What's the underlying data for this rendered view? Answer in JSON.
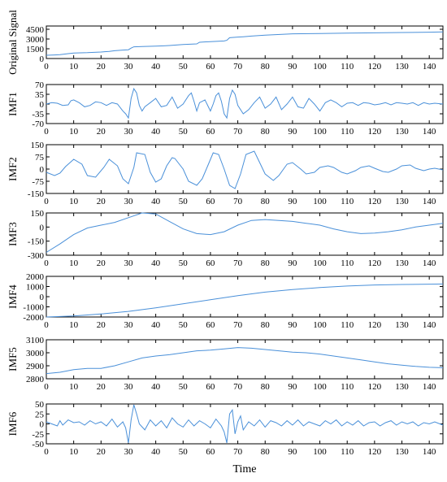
{
  "chart_data": {
    "type": "line",
    "xlabel": "Time",
    "xlim": [
      0,
      145
    ],
    "x_ticks": [
      0,
      10,
      20,
      30,
      40,
      50,
      60,
      70,
      80,
      90,
      100,
      110,
      120,
      130,
      140
    ],
    "line_color": "#4a90d9",
    "grid": false,
    "panels": [
      {
        "ylabel": "Original Signal",
        "ylim": [
          0,
          5000
        ],
        "y_ticks": [
          0,
          1500,
          3000,
          4500
        ],
        "series": [
          {
            "x": [
              0,
              3,
              5,
              8,
              10,
              15,
              20,
              23,
              25,
              28,
              30,
              31,
              32,
              35,
              40,
              43,
              45,
              50,
              55,
              56,
              60,
              65,
              66,
              67,
              70,
              72,
              75,
              80,
              90,
              100,
              110,
              120,
              130,
              140,
              145
            ],
            "y": [
              500,
              550,
              600,
              750,
              850,
              900,
              1000,
              1100,
              1200,
              1300,
              1350,
              1600,
              1800,
              1850,
              1900,
              1950,
              2000,
              2150,
              2250,
              2500,
              2600,
              2700,
              2800,
              3200,
              3300,
              3350,
              3450,
              3600,
              3800,
              3850,
              3900,
              3950,
              4000,
              4050,
              4100
            ]
          }
        ]
      },
      {
        "ylabel": "IMF1",
        "ylim": [
          -70,
          70
        ],
        "y_ticks": [
          -70,
          -35,
          0,
          35,
          70
        ],
        "series": [
          {
            "x": [
              0,
              2,
              4,
              6,
              8,
              9,
              10,
              12,
              14,
              16,
              18,
              20,
              22,
              24,
              26,
              28,
              29,
              30,
              31,
              32,
              33,
              34,
              35,
              36,
              38,
              40,
              42,
              44,
              46,
              48,
              50,
              52,
              53,
              54,
              55,
              56,
              58,
              60,
              61,
              62,
              63,
              64,
              65,
              66,
              67,
              68,
              69,
              70,
              72,
              74,
              76,
              78,
              80,
              82,
              84,
              86,
              88,
              90,
              92,
              94,
              96,
              98,
              100,
              102,
              104,
              106,
              108,
              110,
              112,
              114,
              116,
              118,
              120,
              122,
              124,
              126,
              128,
              130,
              132,
              134,
              136,
              138,
              140,
              142,
              145
            ],
            "y": [
              0,
              5,
              3,
              -5,
              -3,
              12,
              15,
              5,
              -10,
              -5,
              8,
              5,
              -5,
              5,
              0,
              -25,
              -35,
              -50,
              20,
              55,
              40,
              -5,
              -25,
              -10,
              5,
              20,
              -10,
              -5,
              25,
              -15,
              0,
              30,
              40,
              10,
              -25,
              5,
              15,
              -25,
              0,
              30,
              40,
              10,
              -35,
              -50,
              20,
              50,
              35,
              -5,
              -35,
              -20,
              5,
              25,
              -15,
              0,
              25,
              -20,
              0,
              25,
              -10,
              -15,
              20,
              0,
              -25,
              5,
              15,
              5,
              -10,
              3,
              5,
              -5,
              5,
              3,
              -3,
              0,
              5,
              -3,
              5,
              3,
              0,
              5,
              -5,
              5,
              0,
              3,
              0
            ]
          }
        ]
      },
      {
        "ylabel": "IMF2",
        "ylim": [
          -150,
          150
        ],
        "y_ticks": [
          -150,
          -75,
          0,
          75,
          150
        ],
        "series": [
          {
            "x": [
              0,
              3,
              5,
              7,
              10,
              13,
              15,
              18,
              21,
              23,
              26,
              28,
              30,
              32,
              33,
              36,
              38,
              40,
              42,
              44,
              46,
              47,
              50,
              52,
              55,
              57,
              59,
              61,
              63,
              65,
              67,
              69,
              71,
              73,
              76,
              78,
              80,
              83,
              85,
              88,
              90,
              93,
              95,
              98,
              100,
              103,
              105,
              108,
              110,
              113,
              115,
              118,
              120,
              123,
              125,
              128,
              130,
              133,
              135,
              138,
              140,
              142,
              145
            ],
            "y": [
              -20,
              -40,
              -25,
              15,
              60,
              30,
              -40,
              -50,
              10,
              60,
              20,
              -60,
              -90,
              10,
              100,
              90,
              -20,
              -80,
              -60,
              20,
              70,
              65,
              0,
              -75,
              -100,
              -60,
              20,
              100,
              90,
              0,
              -100,
              -120,
              -30,
              90,
              110,
              40,
              -30,
              -70,
              -40,
              30,
              40,
              0,
              -30,
              -20,
              10,
              20,
              10,
              -20,
              -30,
              -10,
              10,
              20,
              5,
              -15,
              -20,
              0,
              20,
              25,
              5,
              -10,
              0,
              5,
              -5
            ]
          }
        ]
      },
      {
        "ylabel": "IMF3",
        "ylim": [
          -300,
          150
        ],
        "y_ticks": [
          -300,
          -150,
          0,
          150
        ],
        "series": [
          {
            "x": [
              0,
              5,
              10,
              15,
              20,
              25,
              30,
              35,
              40,
              45,
              50,
              55,
              60,
              65,
              70,
              75,
              80,
              85,
              90,
              95,
              100,
              105,
              110,
              115,
              120,
              125,
              130,
              135,
              140,
              145
            ],
            "y": [
              -270,
              -180,
              -80,
              -10,
              20,
              50,
              100,
              150,
              140,
              60,
              -20,
              -70,
              -80,
              -50,
              20,
              70,
              80,
              70,
              60,
              40,
              20,
              -20,
              -50,
              -70,
              -65,
              -50,
              -30,
              0,
              20,
              40
            ]
          }
        ]
      },
      {
        "ylabel": "IMF4",
        "ylim": [
          -2000,
          2000
        ],
        "y_ticks": [
          -2000,
          -1000,
          0,
          1000,
          2000
        ],
        "series": [
          {
            "x": [
              0,
              10,
              20,
              30,
              40,
              50,
              60,
              70,
              80,
              90,
              100,
              110,
              120,
              130,
              140,
              145
            ],
            "y": [
              -2000,
              -1900,
              -1700,
              -1450,
              -1100,
              -700,
              -300,
              100,
              450,
              700,
              900,
              1050,
              1150,
              1200,
              1230,
              1250
            ]
          }
        ]
      },
      {
        "ylabel": "IMF5",
        "ylim": [
          2800,
          3100
        ],
        "y_ticks": [
          2800,
          2900,
          3000,
          3100
        ],
        "series": [
          {
            "x": [
              0,
              5,
              10,
              15,
              20,
              25,
              30,
              35,
              40,
              45,
              50,
              55,
              60,
              65,
              70,
              75,
              80,
              85,
              90,
              95,
              100,
              105,
              110,
              115,
              120,
              125,
              130,
              135,
              140,
              145
            ],
            "y": [
              2840,
              2850,
              2870,
              2880,
              2880,
              2900,
              2930,
              2960,
              2975,
              2985,
              3000,
              3015,
              3020,
              3030,
              3040,
              3035,
              3025,
              3015,
              3005,
              3000,
              2990,
              2975,
              2960,
              2945,
              2930,
              2915,
              2905,
              2895,
              2888,
              2885
            ]
          }
        ]
      },
      {
        "ylabel": "IMF6",
        "ylim": [
          -50,
          50
        ],
        "y_ticks": [
          -50,
          -25,
          0,
          25,
          50
        ],
        "series": [
          {
            "x": [
              0,
              2,
              4,
              5,
              6,
              8,
              10,
              12,
              14,
              16,
              18,
              20,
              22,
              24,
              26,
              28,
              29,
              30,
              31,
              32,
              33,
              34,
              36,
              38,
              40,
              42,
              44,
              46,
              48,
              50,
              52,
              54,
              56,
              58,
              60,
              62,
              64,
              65,
              66,
              67,
              68,
              69,
              70,
              71,
              72,
              74,
              76,
              78,
              80,
              82,
              84,
              86,
              88,
              90,
              92,
              94,
              96,
              98,
              100,
              102,
              104,
              106,
              108,
              110,
              112,
              114,
              116,
              118,
              120,
              122,
              124,
              126,
              128,
              130,
              132,
              134,
              136,
              138,
              140,
              142,
              145
            ],
            "y": [
              5,
              0,
              -5,
              8,
              -3,
              10,
              3,
              5,
              -3,
              8,
              0,
              5,
              -5,
              12,
              -8,
              5,
              -10,
              -48,
              10,
              48,
              25,
              0,
              -15,
              10,
              -5,
              8,
              -10,
              15,
              0,
              -8,
              10,
              -5,
              8,
              0,
              -10,
              12,
              -5,
              -20,
              -48,
              25,
              35,
              -25,
              5,
              20,
              -15,
              5,
              -5,
              10,
              -8,
              8,
              3,
              -5,
              8,
              -3,
              10,
              -5,
              5,
              0,
              -5,
              8,
              0,
              10,
              -5,
              5,
              -3,
              8,
              -5,
              3,
              5,
              -5,
              3,
              8,
              -3,
              5,
              0,
              5,
              -5,
              3,
              0,
              5,
              -3
            ]
          }
        ]
      }
    ]
  }
}
